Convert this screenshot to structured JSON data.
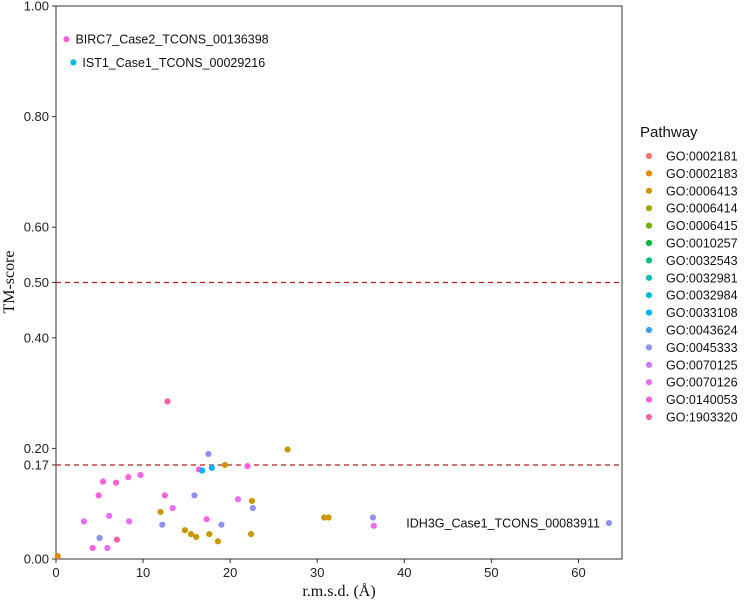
{
  "chart_data": {
    "type": "scatter",
    "xlabel": "r.m.s.d. (Å)",
    "ylabel": "TM-score",
    "xlim": [
      0,
      65
    ],
    "ylim": [
      0,
      1
    ],
    "x_ticks": [
      0,
      10,
      20,
      30,
      40,
      50,
      60
    ],
    "y_ticks": [
      0.0,
      0.17,
      0.2,
      0.4,
      0.5,
      0.6,
      0.8,
      1.0
    ],
    "y_tick_labels": [
      "0.00",
      "0.17",
      "0.20",
      "0.40",
      "0.50",
      "0.60",
      "0.80",
      "1.00"
    ],
    "hlines": [
      0.17,
      0.5
    ],
    "legend": {
      "title": "Pathway",
      "placement": "right",
      "entries": [
        {
          "name": "GO:0002181",
          "color": "#F8766D"
        },
        {
          "name": "GO:0002183",
          "color": "#E58700"
        },
        {
          "name": "GO:0006413",
          "color": "#C99800"
        },
        {
          "name": "GO:0006414",
          "color": "#A3A500"
        },
        {
          "name": "GO:0006415",
          "color": "#6BB100"
        },
        {
          "name": "GO:0010257",
          "color": "#00BA38"
        },
        {
          "name": "GO:0032543",
          "color": "#00BF7D"
        },
        {
          "name": "GO:0032981",
          "color": "#00C0AF"
        },
        {
          "name": "GO:0032984",
          "color": "#00BCD8"
        },
        {
          "name": "GO:0033108",
          "color": "#00B0F6"
        },
        {
          "name": "GO:0043624",
          "color": "#3DA1FF"
        },
        {
          "name": "GO:0045333",
          "color": "#8F91F2"
        },
        {
          "name": "GO:0070125",
          "color": "#C77CFF"
        },
        {
          "name": "GO:0070126",
          "color": "#E76BF3"
        },
        {
          "name": "GO:0140053",
          "color": "#FA62DB"
        },
        {
          "name": "GO:1903320",
          "color": "#FF62A4"
        }
      ]
    },
    "annotations": [
      {
        "text": "BIRC7_Case2_TCONS_00136398",
        "x": 1.2,
        "y": 0.94,
        "side": "right"
      },
      {
        "text": "IST1_Case1_TCONS_00029216",
        "x": 2.0,
        "y": 0.898,
        "side": "right"
      },
      {
        "text": "IDH3G_Case1_TCONS_00083911",
        "x": 63.5,
        "y": 0.065,
        "side": "left"
      }
    ],
    "points": [
      {
        "x": 1.2,
        "y": 0.94,
        "series": "GO:0140053"
      },
      {
        "x": 2.0,
        "y": 0.898,
        "series": "GO:0032984"
      },
      {
        "x": 0.2,
        "y": 0.005,
        "series": "GO:0002183"
      },
      {
        "x": 63.5,
        "y": 0.065,
        "series": "GO:0045333"
      },
      {
        "x": 12.8,
        "y": 0.285,
        "series": "GO:1903320"
      },
      {
        "x": 3.2,
        "y": 0.068,
        "series": "GO:0070126"
      },
      {
        "x": 4.2,
        "y": 0.02,
        "series": "GO:0140053"
      },
      {
        "x": 4.9,
        "y": 0.115,
        "series": "GO:0140053"
      },
      {
        "x": 5.0,
        "y": 0.038,
        "series": "GO:0045333"
      },
      {
        "x": 5.4,
        "y": 0.14,
        "series": "GO:0140053"
      },
      {
        "x": 5.9,
        "y": 0.02,
        "series": "GO:0070126"
      },
      {
        "x": 6.1,
        "y": 0.078,
        "series": "GO:0070126"
      },
      {
        "x": 6.9,
        "y": 0.138,
        "series": "GO:0140053"
      },
      {
        "x": 7.0,
        "y": 0.035,
        "series": "GO:1903320"
      },
      {
        "x": 8.3,
        "y": 0.148,
        "series": "GO:0140053"
      },
      {
        "x": 8.4,
        "y": 0.068,
        "series": "GO:0070126"
      },
      {
        "x": 9.7,
        "y": 0.152,
        "series": "GO:0140053"
      },
      {
        "x": 12.0,
        "y": 0.085,
        "series": "GO:0006413"
      },
      {
        "x": 12.2,
        "y": 0.062,
        "series": "GO:0045333"
      },
      {
        "x": 12.5,
        "y": 0.115,
        "series": "GO:0140053"
      },
      {
        "x": 13.4,
        "y": 0.092,
        "series": "GO:0070126"
      },
      {
        "x": 14.8,
        "y": 0.052,
        "series": "GO:0006413"
      },
      {
        "x": 15.5,
        "y": 0.045,
        "series": "GO:0006413"
      },
      {
        "x": 15.9,
        "y": 0.115,
        "series": "GO:0045333"
      },
      {
        "x": 16.1,
        "y": 0.04,
        "series": "GO:0006413"
      },
      {
        "x": 16.4,
        "y": 0.162,
        "series": "GO:0140053"
      },
      {
        "x": 16.8,
        "y": 0.16,
        "series": "GO:0033108"
      },
      {
        "x": 17.3,
        "y": 0.072,
        "series": "GO:0140053"
      },
      {
        "x": 17.5,
        "y": 0.19,
        "series": "GO:0045333"
      },
      {
        "x": 17.6,
        "y": 0.045,
        "series": "GO:0006413"
      },
      {
        "x": 17.9,
        "y": 0.165,
        "series": "GO:0033108"
      },
      {
        "x": 18.6,
        "y": 0.032,
        "series": "GO:0006413"
      },
      {
        "x": 19.0,
        "y": 0.062,
        "series": "GO:0045333"
      },
      {
        "x": 19.4,
        "y": 0.17,
        "series": "GO:0006413"
      },
      {
        "x": 20.9,
        "y": 0.108,
        "series": "GO:0070126"
      },
      {
        "x": 22.0,
        "y": 0.168,
        "series": "GO:0140053"
      },
      {
        "x": 22.4,
        "y": 0.045,
        "series": "GO:0006413"
      },
      {
        "x": 22.5,
        "y": 0.105,
        "series": "GO:0006413"
      },
      {
        "x": 22.6,
        "y": 0.092,
        "series": "GO:0045333"
      },
      {
        "x": 26.6,
        "y": 0.198,
        "series": "GO:0006413"
      },
      {
        "x": 30.8,
        "y": 0.075,
        "series": "GO:0006413"
      },
      {
        "x": 31.3,
        "y": 0.075,
        "series": "GO:0006413"
      },
      {
        "x": 36.4,
        "y": 0.075,
        "series": "GO:0045333"
      },
      {
        "x": 36.5,
        "y": 0.06,
        "series": "GO:0070126"
      }
    ]
  }
}
